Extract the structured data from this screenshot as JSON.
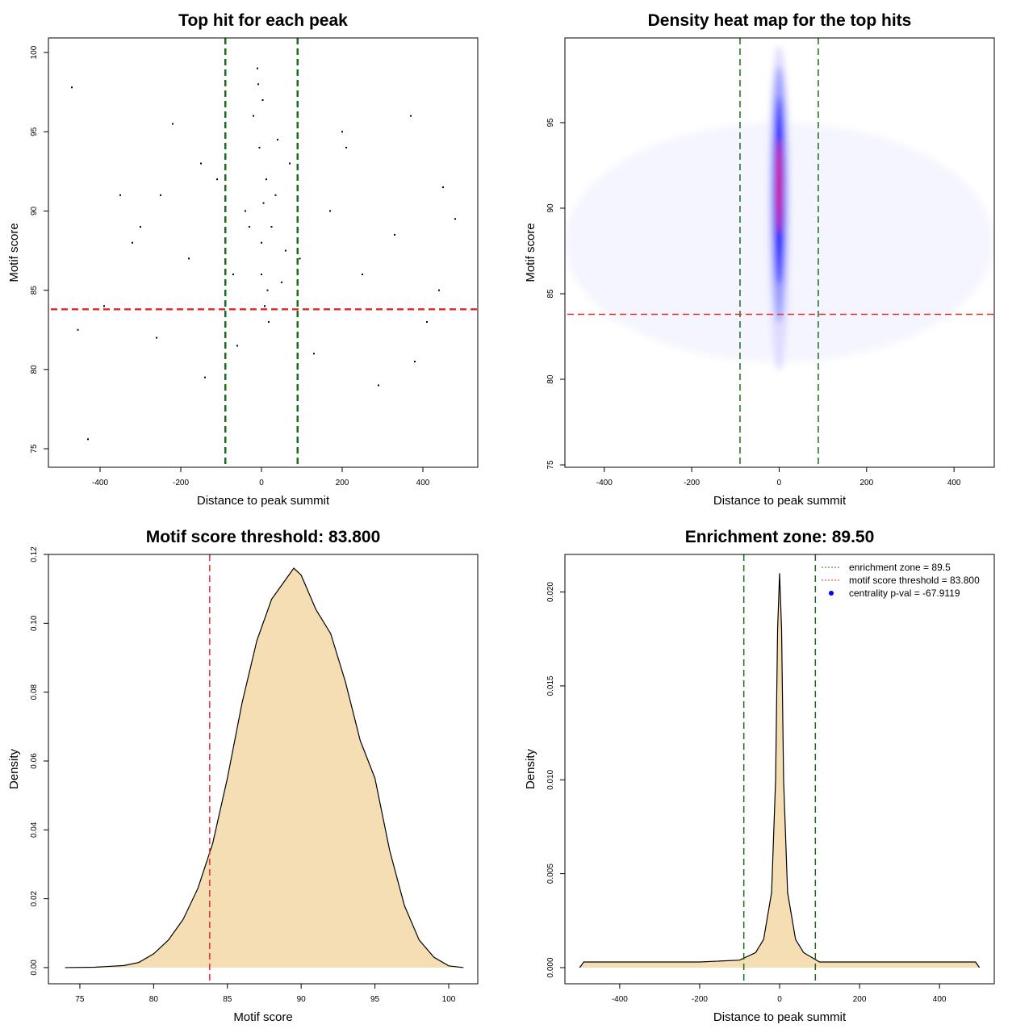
{
  "chart_data": [
    {
      "type": "scatter",
      "title": "Top hit for each peak",
      "xlabel": "Distance to peak summit",
      "ylabel": "Motif score",
      "xlim": [
        -528,
        536
      ],
      "ylim": [
        73.83,
        100.92
      ],
      "xticks": [
        -400,
        -200,
        0,
        200,
        400
      ],
      "yticks": [
        75,
        80,
        85,
        90,
        95,
        100
      ],
      "color": "#000000",
      "x": [
        -470,
        -430,
        -390,
        -350,
        -300,
        -260,
        -220,
        -180,
        -140,
        -110,
        -70,
        -40,
        -20,
        -10,
        -5,
        0,
        3,
        8,
        12,
        18,
        25,
        35,
        50,
        70,
        95,
        130,
        170,
        210,
        250,
        290,
        330,
        370,
        410,
        450,
        480,
        -455,
        -320,
        -150,
        -60,
        0,
        5,
        -8,
        15,
        60,
        200,
        380,
        -250,
        -30,
        40,
        440
      ],
      "y": [
        97.8,
        75.6,
        84,
        91,
        89,
        82,
        95.5,
        87,
        79.5,
        92,
        86,
        90,
        96,
        99,
        94,
        88,
        97,
        84,
        92,
        83,
        89,
        91,
        85.5,
        93,
        87,
        81,
        90,
        94,
        86,
        79,
        88.5,
        96,
        83,
        91.5,
        89.5,
        82.5,
        88,
        93,
        81.5,
        86,
        90.5,
        98,
        85,
        87.5,
        95,
        80.5,
        91,
        89,
        94.5,
        85
      ],
      "vlines": [
        {
          "value": -89.5,
          "color": "#1a6e1a"
        },
        {
          "value": 89.5,
          "color": "#1a6e1a"
        }
      ],
      "hlines": [
        {
          "value": 83.8,
          "color": "#e03030"
        }
      ]
    },
    {
      "type": "heatmap",
      "title": "Density heat map for the top hits",
      "xlabel": "Distance to peak summit",
      "ylabel": "Motif score",
      "xlim": [
        -490,
        492
      ],
      "ylim": [
        74.86,
        99.95
      ],
      "xticks": [
        -400,
        -200,
        0,
        200,
        400
      ],
      "yticks": [
        75,
        80,
        85,
        90,
        95
      ],
      "levels": [
        {
          "x": 0,
          "y": 88,
          "rx": 490,
          "ry": 7,
          "color": "#f5f5ff"
        },
        {
          "x": 0,
          "y": 90,
          "rx": 25,
          "ry": 9.5,
          "color": "#dcdcff"
        },
        {
          "x": 0,
          "y": 90.8,
          "rx": 18,
          "ry": 7.5,
          "color": "#9a9aff"
        },
        {
          "x": 0,
          "y": 91,
          "rx": 12,
          "ry": 5.5,
          "color": "#2a2aff"
        },
        {
          "x": 0,
          "y": 91.2,
          "rx": 8,
          "ry": 4,
          "color": "#0000ff"
        },
        {
          "x": 0,
          "y": 91.3,
          "rx": 5,
          "ry": 2.8,
          "color": "#ff0000"
        }
      ],
      "vlines": [
        {
          "value": -89.5,
          "color": "#1a6e1a"
        },
        {
          "value": 89.5,
          "color": "#1a6e1a"
        }
      ],
      "hlines": [
        {
          "value": 83.8,
          "color": "#e03030"
        }
      ]
    },
    {
      "type": "area",
      "title": "Motif score threshold: 83.800",
      "xlabel": "Motif score",
      "ylabel": "Density",
      "xlim": [
        72.87,
        101.97
      ],
      "ylim": [
        -0.0047,
        0.12
      ],
      "xticks": [
        75,
        80,
        85,
        90,
        95,
        100
      ],
      "yticks": [
        {
          "value": 0,
          "label": "0.00"
        },
        {
          "value": 0.02,
          "label": "0.02"
        },
        {
          "value": 0.04,
          "label": "0.04"
        },
        {
          "value": 0.06,
          "label": "0.06"
        },
        {
          "value": 0.08,
          "label": "0.08"
        },
        {
          "value": 0.1,
          "label": "0.10"
        },
        {
          "value": 0.12,
          "label": "0.12"
        }
      ],
      "color": "#f5deb3",
      "x": [
        74,
        76,
        78,
        79,
        80,
        81,
        82,
        83,
        84,
        85,
        86,
        87,
        88,
        89,
        89.5,
        90,
        91,
        92,
        93,
        94,
        95,
        96,
        97,
        98,
        99,
        100,
        101
      ],
      "values": [
        0,
        0.0001,
        0.0006,
        0.0015,
        0.004,
        0.008,
        0.014,
        0.023,
        0.036,
        0.055,
        0.077,
        0.095,
        0.107,
        0.113,
        0.116,
        0.114,
        0.104,
        0.097,
        0.083,
        0.066,
        0.055,
        0.034,
        0.018,
        0.008,
        0.003,
        0.0005,
        0
      ],
      "vlines": [
        {
          "value": 83.8,
          "color": "#e03030"
        }
      ]
    },
    {
      "type": "area",
      "title": "Enrichment zone: 89.50",
      "xlabel": "Distance to peak summit",
      "ylabel": "Density",
      "xlim": [
        -537,
        537
      ],
      "ylim": [
        -0.00086,
        0.022
      ],
      "xticks": [
        -400,
        -200,
        0,
        200,
        400
      ],
      "yticks": [
        {
          "value": 0,
          "label": "0.000"
        },
        0.005,
        {
          "value": 0.01,
          "label": "0.010"
        },
        0.015,
        {
          "value": 0.02,
          "label": "0.020"
        }
      ],
      "color": "#f5deb3",
      "x": [
        -500,
        -490,
        -400,
        -300,
        -200,
        -100,
        -60,
        -40,
        -20,
        -10,
        -5,
        0,
        5,
        10,
        20,
        40,
        60,
        100,
        200,
        300,
        400,
        490,
        500
      ],
      "values": [
        0,
        0.0003,
        0.0003,
        0.0003,
        0.0003,
        0.0004,
        0.0008,
        0.0015,
        0.004,
        0.01,
        0.018,
        0.021,
        0.018,
        0.01,
        0.004,
        0.0015,
        0.0008,
        0.0003,
        0.0003,
        0.0003,
        0.0003,
        0.0003,
        0
      ],
      "vlines": [
        {
          "value": -89.5,
          "color": "#1a6e1a"
        },
        {
          "value": 89.5,
          "color": "#1a6e1a"
        }
      ],
      "legend": "top-right",
      "legend_entries": [
        {
          "label": "enrichment zone = 89.5",
          "color": "#1a6e1a",
          "style": "dotted"
        },
        {
          "label": "motif score threshold = 83.800",
          "color": "#e03030",
          "style": "dotted"
        },
        {
          "label": "centrality p-val = -67.9119",
          "color": "#0000ff",
          "style": "point"
        }
      ]
    }
  ]
}
